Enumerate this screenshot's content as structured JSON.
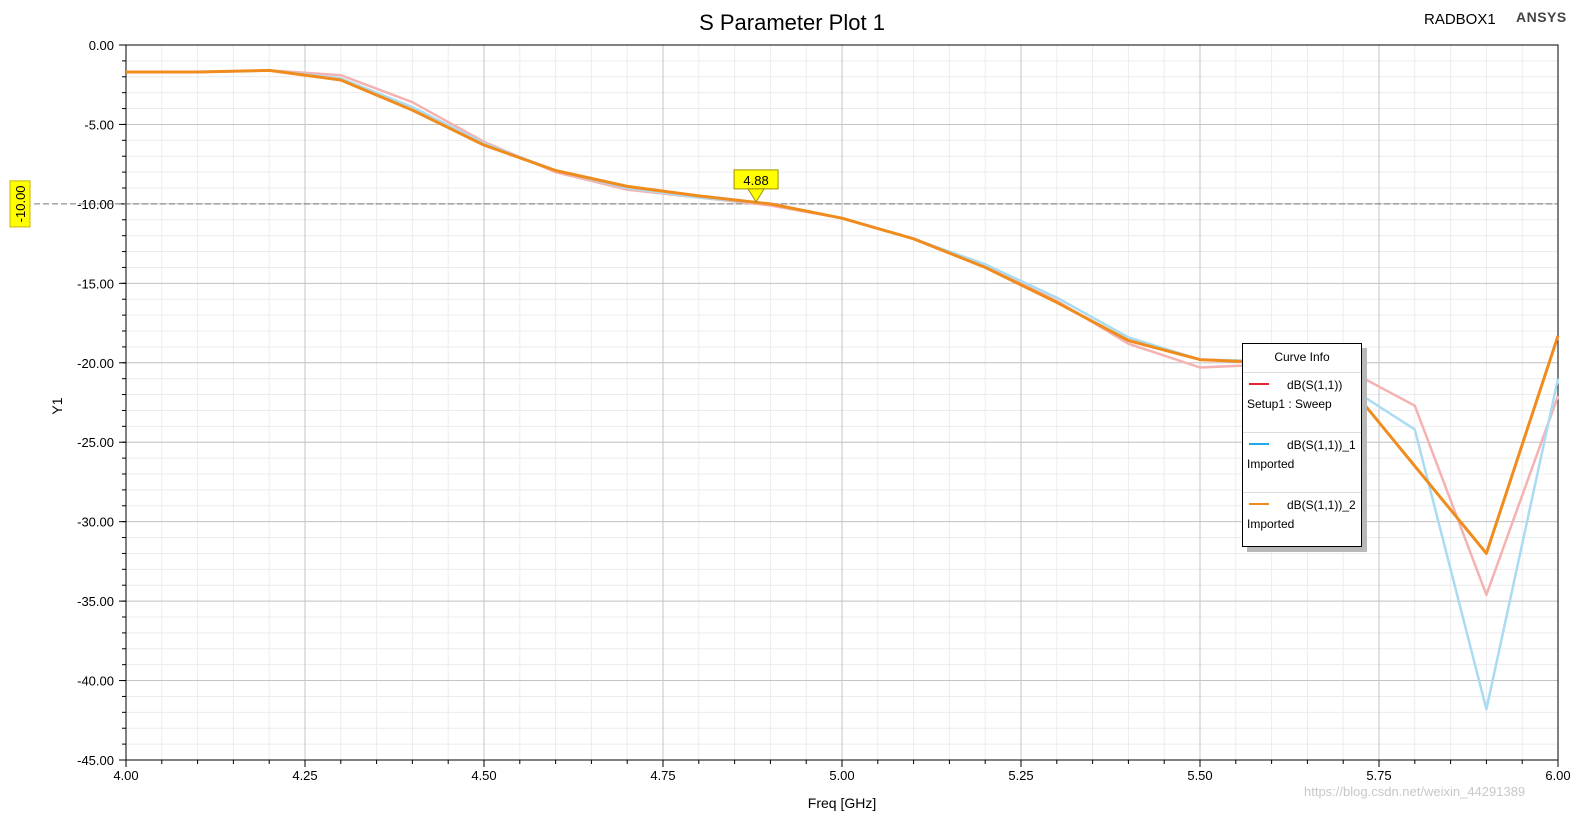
{
  "header": {
    "project": "RADBOX1",
    "brand": "ANSYS"
  },
  "watermark": "https://blog.csdn.net/weixin_44291389",
  "legend": {
    "title": "Curve Info",
    "entries": [
      {
        "name": "dB(S(1,1))",
        "source": "Setup1 : Sweep",
        "color": "#e8242c"
      },
      {
        "name": "dB(S(1,1))_1",
        "source": "Imported",
        "color": "#1fa9e6"
      },
      {
        "name": "dB(S(1,1))_2",
        "source": "Imported",
        "color": "#f08c1e"
      }
    ]
  },
  "marker": {
    "label": "4.88",
    "x": 4.88,
    "y": -10.0
  },
  "hline": {
    "label": "-10.00",
    "y": -10.0
  },
  "chart_data": {
    "type": "line",
    "title": "S Parameter Plot 1",
    "xlabel": "Freq [GHz]",
    "ylabel": "Y1",
    "xlim": [
      4.0,
      6.0
    ],
    "ylim": [
      -45.0,
      0.0
    ],
    "xticks": [
      "4.00",
      "4.25",
      "4.50",
      "4.75",
      "5.00",
      "5.25",
      "5.50",
      "5.75",
      "6.00"
    ],
    "yticks": [
      "0.00",
      "-5.00",
      "-10.00",
      "-15.00",
      "-20.00",
      "-25.00",
      "-30.00",
      "-35.00",
      "-40.00",
      "-45.00"
    ],
    "grid": true,
    "legend_position": "right",
    "series": [
      {
        "name": "dB(S(1,1))",
        "color": "#f4b2b2",
        "x": [
          4.0,
          4.1,
          4.2,
          4.3,
          4.4,
          4.5,
          4.6,
          4.7,
          4.8,
          4.9,
          5.0,
          5.1,
          5.2,
          5.3,
          5.4,
          5.5,
          5.6,
          5.7,
          5.8,
          5.9,
          6.0
        ],
        "y": [
          -1.7,
          -1.7,
          -1.6,
          -1.9,
          -3.6,
          -6.1,
          -8.0,
          -9.1,
          -9.6,
          -10.1,
          -10.9,
          -12.2,
          -13.9,
          -16.1,
          -18.8,
          -20.3,
          -20.1,
          -20.3,
          -22.7,
          -34.6,
          -22.1
        ]
      },
      {
        "name": "dB(S(1,1))_1",
        "color": "#a9dcf2",
        "x": [
          4.0,
          4.1,
          4.2,
          4.3,
          4.4,
          4.5,
          4.6,
          4.7,
          4.8,
          4.9,
          5.0,
          5.1,
          5.2,
          5.3,
          5.4,
          5.5,
          5.6,
          5.7,
          5.8,
          5.9,
          6.0
        ],
        "y": [
          -1.7,
          -1.7,
          -1.6,
          -2.1,
          -3.9,
          -6.2,
          -7.9,
          -9.0,
          -9.6,
          -10.0,
          -10.9,
          -12.2,
          -13.8,
          -15.9,
          -18.4,
          -19.8,
          -19.9,
          -21.3,
          -24.2,
          -41.8,
          -21.0
        ]
      },
      {
        "name": "dB(S(1,1))_2",
        "color": "#f08c1e",
        "x": [
          4.0,
          4.1,
          4.2,
          4.3,
          4.4,
          4.5,
          4.6,
          4.7,
          4.8,
          4.9,
          5.0,
          5.1,
          5.2,
          5.3,
          5.4,
          5.5,
          5.6,
          5.7,
          5.9,
          6.0
        ],
        "y": [
          -1.7,
          -1.7,
          -1.6,
          -2.2,
          -4.1,
          -6.3,
          -7.9,
          -8.9,
          -9.5,
          -10.0,
          -10.9,
          -12.2,
          -14.0,
          -16.2,
          -18.6,
          -19.8,
          -20.0,
          -21.0,
          -32.0,
          -18.3
        ]
      }
    ]
  }
}
